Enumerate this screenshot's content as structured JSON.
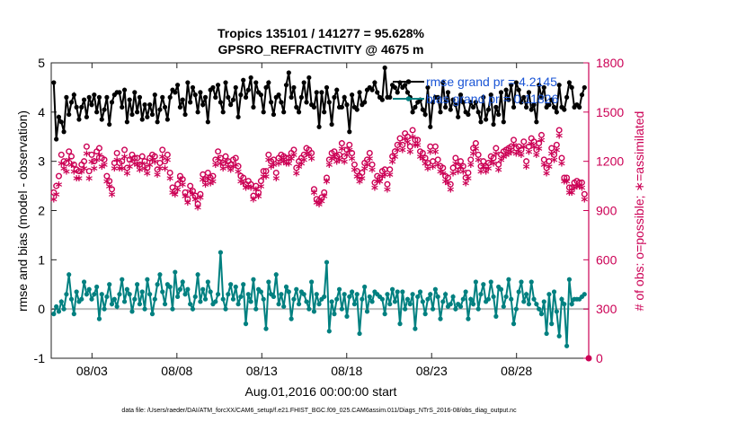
{
  "chart_data": {
    "type": "line",
    "title_line1": "Tropics 135101 / 141277 = 95.628%",
    "title_line2": "GPSRO_REFRACTIVITY @ 4675 m",
    "xlabel": "Aug.01,2016 00:00:00 start",
    "ylabel_left": "rmse and bias (model - observation)",
    "ylabel_right": "# of obs: o=possible; ∗=assimilated",
    "footnote": "data file: /Users/raeder/DAI/ATM_forcXX/CAM6_setup/f.e21.FHIST_BGC.f09_025.CAM6assim.011/Diags_NTrS_2016-08/obs_diag_output.nc",
    "xlim": [
      0.1,
      31.75
    ],
    "ylim_left": [
      -1,
      5
    ],
    "ylim_right": [
      0,
      1800
    ],
    "xticks": [
      2.5,
      7.5,
      12.5,
      17.5,
      22.5,
      27.5
    ],
    "xtick_labels": [
      "08/03",
      "08/08",
      "08/13",
      "08/18",
      "08/23",
      "08/28"
    ],
    "yticks_left": [
      -1,
      0,
      1,
      2,
      3,
      4,
      5
    ],
    "yticks_left_labels": [
      "-1",
      "0",
      "1",
      "2",
      "3",
      "4",
      "5"
    ],
    "yticks_right": [
      0,
      300,
      600,
      900,
      1200,
      1500,
      1800
    ],
    "yticks_right_labels": [
      "0",
      "300",
      "600",
      "900",
      "1200",
      "1500",
      "1800"
    ],
    "legend": [
      {
        "name": "rmse",
        "label": "rmse grand pr = 4.2145",
        "color": "#000000"
      },
      {
        "name": "bias",
        "label": "bias grand pr = 0.11826",
        "color": "#008080"
      }
    ],
    "colors": {
      "rmse": "#000000",
      "bias": "#008080",
      "counts": "#cc0055",
      "zero_line": "#bbbbbb"
    },
    "rmse": [
      4.6,
      3.45,
      3.9,
      3.8,
      3.6,
      4.3,
      3.95,
      4.2,
      4.35,
      4.1,
      3.85,
      4.1,
      4.25,
      3.9,
      4.3,
      4.15,
      4.35,
      4.0,
      4.3,
      3.85,
      4.05,
      4.3,
      3.75,
      4.2,
      4.35,
      4.4,
      4.4,
      4.1,
      4.45,
      3.8,
      4.25,
      3.95,
      4.4,
      4.0,
      4.3,
      3.85,
      4.15,
      3.9,
      4.15,
      3.95,
      4.35,
      3.8,
      4.05,
      4.3,
      4.1,
      3.85,
      4.3,
      4.45,
      4.4,
      4.55,
      4.1,
      4.25,
      3.95,
      4.6,
      4.2,
      4.5,
      4.35,
      4.0,
      4.4,
      4.15,
      4.3,
      3.8,
      4.45,
      4.5,
      4.3,
      4.55,
      4.2,
      4.0,
      4.6,
      4.3,
      4.15,
      4.25,
      4.5,
      3.9,
      4.35,
      4.65,
      4.3,
      4.45,
      4.7,
      4.1,
      4.6,
      4.4,
      4.35,
      4.0,
      4.5,
      4.6,
      4.2,
      3.95,
      4.3,
      4.35,
      4.2,
      4.0,
      4.55,
      4.8,
      4.3,
      4.5,
      4.1,
      4.0,
      4.3,
      4.6,
      4.2,
      4.7,
      4.15,
      4.1,
      4.4,
      3.7,
      4.4,
      4.0,
      4.5,
      4.2,
      3.75,
      4.3,
      4.45,
      4.1,
      4.1,
      4.3,
      4.15,
      3.6,
      4.35,
      4.1,
      4.05,
      4.4,
      4.15,
      4.2,
      4.45,
      4.5,
      4.45,
      4.6,
      4.4,
      4.3,
      4.25,
      4.9,
      4.3,
      4.3,
      4.55,
      4.5,
      4.4,
      4.6,
      4.5,
      4.55,
      4.4,
      4.3,
      4.0,
      4.1,
      4.2,
      4.25,
      4.05,
      3.95,
      4.5,
      3.7,
      4.2,
      4.3,
      4.3,
      4.0,
      4.6,
      4.1,
      4.4,
      4.05,
      4.25,
      4.15,
      3.9,
      4.35,
      4.2,
      4.0,
      3.95,
      4.2,
      4.1,
      4.2,
      4.0,
      3.8,
      4.3,
      3.85,
      4.05,
      4.35,
      3.75,
      4.1,
      3.95,
      4.4,
      3.8,
      4.45,
      4.25,
      4.55,
      4.1,
      4.6,
      4.45,
      4.2,
      4.3,
      4.1,
      4.4,
      4.05,
      4.15,
      3.8,
      4.55,
      4.3,
      4.5,
      4.1,
      4.15,
      4.25,
      4.1,
      4.0,
      4.55,
      4.1,
      4.05,
      4.3,
      4.6,
      4.5,
      4.1,
      4.15,
      4.1,
      4.35,
      4.5
    ],
    "bias": [
      -0.1,
      0.05,
      -0.05,
      0.15,
      0.0,
      0.3,
      0.7,
      0.2,
      -0.1,
      0.35,
      0.15,
      0.2,
      0.55,
      0.3,
      0.4,
      0.2,
      0.3,
      0.45,
      -0.2,
      0.3,
      0.0,
      0.25,
      0.5,
      0.1,
      0.2,
      0.05,
      0.3,
      0.6,
      0.15,
      0.4,
      0.3,
      -0.05,
      0.2,
      0.5,
      0.1,
      0.35,
      0.0,
      0.6,
      0.3,
      -0.1,
      0.2,
      0.5,
      0.7,
      0.35,
      0.1,
      0.5,
      0.45,
      0.0,
      0.75,
      0.25,
      0.4,
      0.55,
      0.3,
      0.4,
      0.1,
      0.0,
      0.25,
      0.7,
      0.15,
      0.4,
      0.2,
      0.55,
      0.35,
      0.1,
      0.15,
      0.3,
      1.15,
      0.2,
      0.0,
      0.3,
      0.5,
      0.2,
      0.45,
      0.1,
      0.25,
      0.5,
      -0.3,
      0.3,
      0.15,
      0.6,
      0.0,
      0.4,
      0.35,
      0.2,
      -0.4,
      0.55,
      0.3,
      0.25,
      0.7,
      0.1,
      0.3,
      0.05,
      0.45,
      0.35,
      -0.2,
      0.2,
      0.4,
      0.1,
      0.35,
      0.3,
      0.15,
      0.0,
      0.55,
      -0.05,
      0.3,
      0.1,
      0.2,
      0.25,
      0.95,
      -0.45,
      0.15,
      -0.1,
      0.2,
      0.4,
      0.0,
      0.3,
      -0.15,
      0.25,
      0.35,
      0.1,
      0.3,
      -0.5,
      0.2,
      0.45,
      -0.05,
      0.25,
      0.15,
      0.35,
      0.3,
      0.25,
      0.2,
      -0.1,
      0.3,
      0.1,
      0.4,
      0.15,
      0.35,
      -0.3,
      0.35,
      0.0,
      0.2,
      0.1,
      0.3,
      -0.4,
      0.25,
      0.35,
      0.15,
      -0.1,
      0.2,
      0.3,
      0.0,
      0.4,
      0.25,
      -0.2,
      0.15,
      0.3,
      0.05,
      0.1,
      0.25,
      0.0,
      0.1,
      0.05,
      0.2,
      0.35,
      -0.2,
      0.2,
      0.1,
      0.55,
      0.0,
      0.3,
      0.5,
      0.15,
      0.2,
      0.55,
      0.25,
      -0.15,
      0.45,
      0.4,
      0.05,
      0.25,
      0.6,
      0.2,
      -0.3,
      0.0,
      0.35,
      0.55,
      0.15,
      0.3,
      0.1,
      0.55,
      0.2,
      0.1,
      0.0,
      -0.1,
      0.15,
      -0.5,
      0.3,
      -0.3,
      0.35,
      -0.05,
      -0.55,
      0.2,
      0.1,
      -0.75,
      0.6,
      0.1,
      0.2,
      0.2,
      0.2,
      0.25,
      0.3
    ],
    "obs_possible": [
      1010,
      1050,
      1110,
      1240,
      1200,
      1190,
      1260,
      1230,
      1180,
      1150,
      1140,
      1180,
      1200,
      1290,
      1140,
      1240,
      1200,
      1260,
      1280,
      1220,
      1210,
      1110,
      1080,
      1030,
      1190,
      1250,
      1190,
      1200,
      1270,
      1160,
      1210,
      1240,
      1220,
      1220,
      1180,
      1230,
      1200,
      1160,
      1220,
      1240,
      1230,
      1150,
      1190,
      1270,
      1200,
      1240,
      1130,
      1040,
      1020,
      1060,
      1110,
      1090,
      1010,
      970,
      1050,
      1020,
      990,
      940,
      1000,
      1120,
      1090,
      1130,
      1100,
      1110,
      1210,
      1260,
      1220,
      1190,
      1230,
      1200,
      1180,
      1210,
      1220,
      1170,
      1110,
      1100,
      1060,
      1080,
      1060,
      990,
      1050,
      1010,
      1080,
      1140,
      1140,
      1240,
      1200,
      1210,
      1130,
      1220,
      1240,
      1230,
      1220,
      1220,
      1250,
      1270,
      1160,
      1200,
      1220,
      1240,
      1280,
      1270,
      1250,
      1030,
      970,
      960,
      980,
      1010,
      1100,
      1210,
      1250,
      1260,
      1230,
      1240,
      1310,
      1230,
      1270,
      1300,
      1250,
      1180,
      1140,
      1110,
      1130,
      1190,
      1210,
      1250,
      1180,
      1070,
      1110,
      1100,
      1140,
      1150,
      1060,
      1150,
      1230,
      1260,
      1300,
      1340,
      1300,
      1370,
      1350,
      1290,
      1390,
      1330,
      1330,
      1260,
      1250,
      1220,
      1190,
      1290,
      1200,
      1290,
      1210,
      1170,
      1160,
      1110,
      1100,
      1060,
      1160,
      1220,
      1170,
      1200,
      1170,
      1100,
      1130,
      1210,
      1280,
      1310,
      1240,
      1170,
      1200,
      1170,
      1190,
      1230,
      1220,
      1280,
      1180,
      1240,
      1260,
      1270,
      1280,
      1290,
      1330,
      1280,
      1290,
      1270,
      1320,
      1200,
      1290,
      1340,
      1320,
      1270,
      1310,
      1360,
      1210,
      1160,
      1200,
      1280,
      1240,
      1300,
      1390,
      1220,
      1100,
      1100,
      1040,
      1040,
      1070,
      1080,
      1070,
      1070,
      1000
    ],
    "obs_assimilated": [
      960,
      990,
      1050,
      1180,
      1150,
      1130,
      1200,
      1170,
      1130,
      1090,
      1090,
      1130,
      1150,
      1240,
      1090,
      1190,
      1150,
      1200,
      1230,
      1160,
      1170,
      1070,
      1040,
      990,
      1150,
      1200,
      1150,
      1150,
      1220,
      1120,
      1160,
      1200,
      1180,
      1170,
      1140,
      1180,
      1150,
      1120,
      1170,
      1200,
      1190,
      1110,
      1150,
      1220,
      1150,
      1200,
      1090,
      1000,
      990,
      1020,
      1080,
      1050,
      980,
      940,
      1010,
      990,
      960,
      910,
      970,
      1080,
      1050,
      1090,
      1060,
      1070,
      1170,
      1210,
      1180,
      1150,
      1190,
      1160,
      1140,
      1160,
      1170,
      1130,
      1070,
      1060,
      1030,
      1040,
      1030,
      960,
      1020,
      980,
      1040,
      1100,
      1100,
      1200,
      1160,
      1170,
      1090,
      1180,
      1200,
      1190,
      1180,
      1180,
      1210,
      1230,
      1120,
      1160,
      1180,
      1200,
      1240,
      1230,
      1210,
      1000,
      940,
      930,
      950,
      980,
      1070,
      1170,
      1210,
      1220,
      1190,
      1200,
      1270,
      1190,
      1230,
      1260,
      1210,
      1140,
      1100,
      1070,
      1090,
      1150,
      1170,
      1210,
      1140,
      1030,
      1070,
      1070,
      1100,
      1110,
      1020,
      1110,
      1190,
      1220,
      1260,
      1300,
      1260,
      1330,
      1310,
      1250,
      1340,
      1290,
      1290,
      1220,
      1210,
      1180,
      1150,
      1250,
      1160,
      1250,
      1170,
      1130,
      1120,
      1070,
      1060,
      1020,
      1120,
      1180,
      1130,
      1160,
      1130,
      1060,
      1090,
      1170,
      1240,
      1270,
      1200,
      1130,
      1160,
      1130,
      1150,
      1190,
      1180,
      1240,
      1140,
      1200,
      1220,
      1230,
      1240,
      1250,
      1290,
      1240,
      1250,
      1230,
      1280,
      1160,
      1250,
      1300,
      1280,
      1230,
      1270,
      1320,
      1170,
      1120,
      1160,
      1240,
      1200,
      1260,
      1350,
      1180,
      1070,
      1070,
      1000,
      1000,
      1030,
      1040,
      1040,
      1030,
      960
    ]
  }
}
